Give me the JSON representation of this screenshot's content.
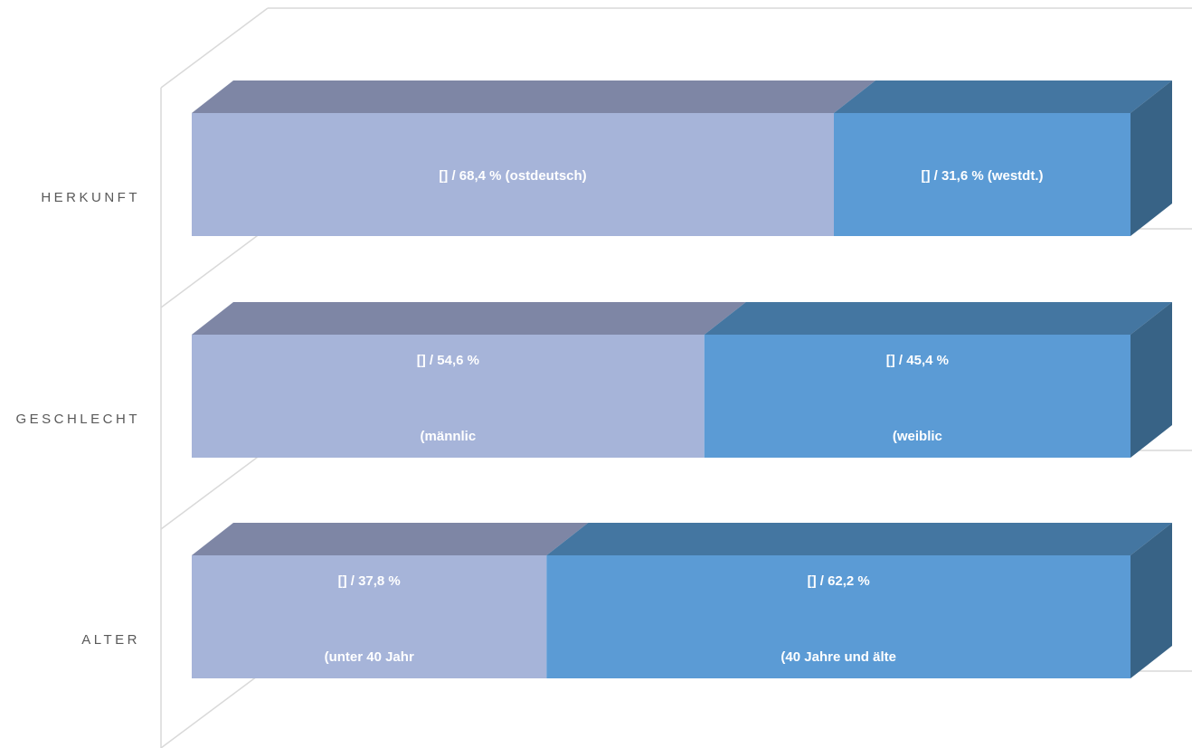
{
  "chart_data": {
    "type": "bar",
    "orientation": "horizontal",
    "stacked": "100%",
    "three_d": true,
    "title": "",
    "xlabel": "",
    "ylabel": "",
    "xlim": [
      0,
      100
    ],
    "grid": true,
    "legend": "none",
    "categories": [
      "HERKUNFT",
      "GESCHLECHT",
      "ALTER"
    ],
    "series": [
      {
        "color_front": "#a6b4d9",
        "color_top": "#7e86a5",
        "color_side": "#6e7594",
        "values": [
          68.4,
          54.6,
          37.8
        ],
        "labels": [
          [
            "[] / 68,4 % (ostdeutsch)"
          ],
          [
            "[] / 54,6 %",
            "(männlic"
          ],
          [
            "[] / 37,8 %",
            "(unter 40 Jahr"
          ]
        ]
      },
      {
        "color_front": "#5b9bd5",
        "color_top": "#4476a1",
        "color_side": "#386386",
        "values": [
          31.6,
          45.4,
          62.2
        ],
        "labels": [
          [
            "[] / 31,6 % (westdt.)"
          ],
          [
            "[] / 45,4 %",
            "(weiblic"
          ],
          [
            "[] / 62,2 %",
            "(40 Jahre und älte"
          ]
        ]
      }
    ]
  }
}
